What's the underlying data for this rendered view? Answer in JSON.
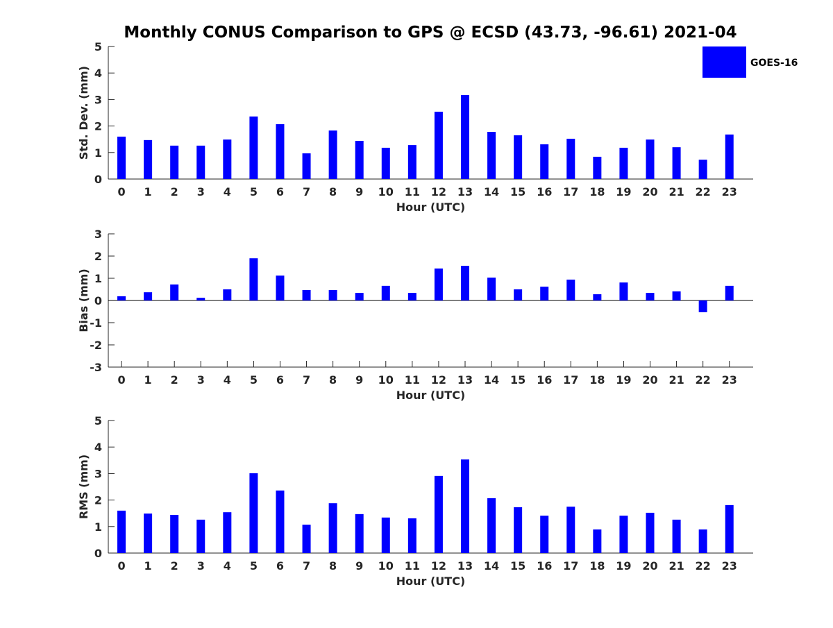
{
  "chart_data": {
    "type": "bar",
    "title": "Monthly CONUS Comparison to GPS @ ECSD (43.73, -96.61) 2021-04",
    "legend": {
      "entries": [
        "GOES-16"
      ],
      "placement": "top-right",
      "color": "#0000ff"
    },
    "categories": [
      0,
      1,
      2,
      3,
      4,
      5,
      6,
      7,
      8,
      9,
      10,
      11,
      12,
      13,
      14,
      15,
      16,
      17,
      18,
      19,
      20,
      21,
      22,
      23
    ],
    "panels": [
      {
        "ylabel": "Std. Dev. (mm)",
        "xlabel": "Hour (UTC)",
        "ylim": [
          0,
          5
        ],
        "yticks": [
          0,
          1,
          2,
          3,
          4,
          5
        ],
        "series": [
          {
            "name": "GOES-16",
            "values": [
              1.6,
              1.47,
              1.26,
              1.26,
              1.49,
              2.36,
              2.07,
              0.97,
              1.83,
              1.44,
              1.18,
              1.28,
              2.54,
              3.17,
              1.78,
              1.65,
              1.31,
              1.52,
              0.84,
              1.18,
              1.49,
              1.2,
              0.73,
              1.68
            ]
          }
        ]
      },
      {
        "ylabel": "Bias (mm)",
        "xlabel": "Hour (UTC)",
        "ylim": [
          -3,
          3
        ],
        "yticks": [
          -3,
          -2,
          -1,
          0,
          1,
          2,
          3
        ],
        "series": [
          {
            "name": "GOES-16",
            "values": [
              0.19,
              0.37,
              0.72,
              0.12,
              0.5,
              1.9,
              1.12,
              0.47,
              0.47,
              0.34,
              0.66,
              0.34,
              1.44,
              1.56,
              1.03,
              0.5,
              0.62,
              0.94,
              0.28,
              0.81,
              0.34,
              0.41,
              -0.53,
              0.66
            ]
          }
        ]
      },
      {
        "ylabel": "RMS (mm)",
        "xlabel": "Hour (UTC)",
        "ylim": [
          0,
          5
        ],
        "yticks": [
          0,
          1,
          2,
          3,
          4,
          5
        ],
        "series": [
          {
            "name": "GOES-16",
            "values": [
              1.6,
              1.49,
              1.44,
              1.26,
              1.54,
              3.01,
              2.36,
              1.07,
              1.88,
              1.47,
              1.34,
              1.31,
              2.91,
              3.53,
              2.07,
              1.73,
              1.41,
              1.75,
              0.89,
              1.41,
              1.52,
              1.26,
              0.89,
              1.81
            ]
          }
        ]
      }
    ],
    "xlim": [
      -0.5,
      23.9
    ],
    "grid": false
  }
}
